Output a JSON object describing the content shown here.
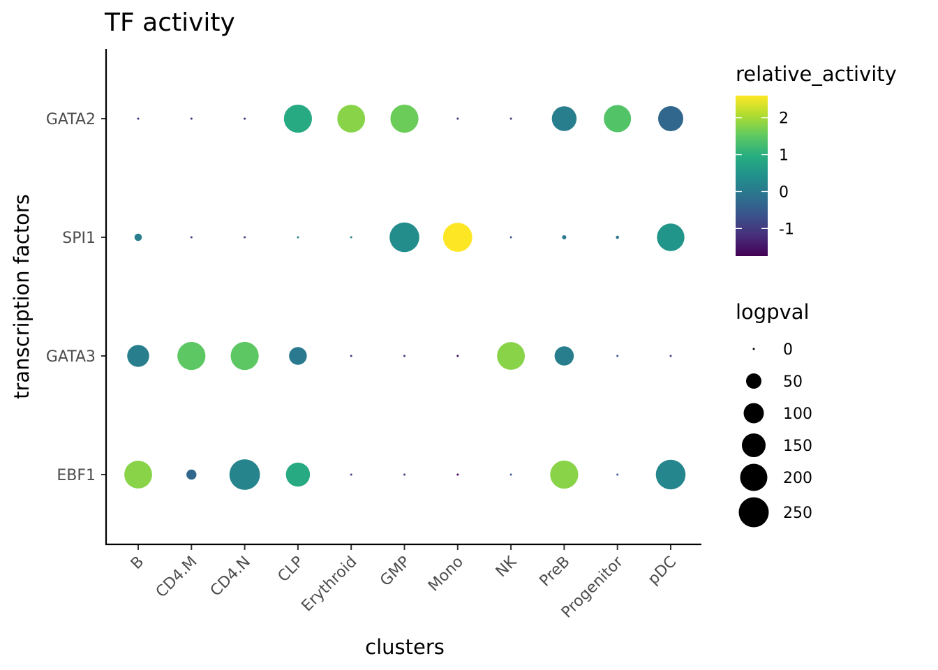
{
  "chart_data": {
    "type": "scatter",
    "title": "TF activity",
    "xlabel": "clusters",
    "ylabel": "transcription factors",
    "categories_x": [
      "B",
      "CD4.M",
      "CD4.N",
      "CLP",
      "Erythroid",
      "GMP",
      "Mono",
      "NK",
      "PreB",
      "Progenitor",
      "pDC"
    ],
    "categories_y": [
      "EBF1",
      "GATA3",
      "SPI1",
      "GATA2"
    ],
    "grid": false,
    "color_legend": {
      "title": "relative_activity",
      "min": -1.75,
      "max": 2.6,
      "ticks": [
        -1,
        0,
        1,
        2
      ],
      "tick_labels": [
        "-1",
        "0",
        "1",
        "2"
      ],
      "palette": "viridis"
    },
    "size_legend": {
      "title": "logpval",
      "breaks": [
        0,
        50,
        100,
        150,
        200,
        250
      ],
      "labels": [
        "0",
        "50",
        "100",
        "150",
        "200",
        "250"
      ]
    },
    "legend_position": "right",
    "points": [
      {
        "tf": "GATA2",
        "cluster": "B",
        "relative_activity": -1.2,
        "logpval": 0
      },
      {
        "tf": "GATA2",
        "cluster": "CD4.M",
        "relative_activity": -1.2,
        "logpval": 0
      },
      {
        "tf": "GATA2",
        "cluster": "CD4.N",
        "relative_activity": -1.2,
        "logpval": 0
      },
      {
        "tf": "GATA2",
        "cluster": "CLP",
        "relative_activity": 0.9,
        "logpval": 215
      },
      {
        "tf": "GATA2",
        "cluster": "Erythroid",
        "relative_activity": 1.8,
        "logpval": 210
      },
      {
        "tf": "GATA2",
        "cluster": "GMP",
        "relative_activity": 1.6,
        "logpval": 215
      },
      {
        "tf": "GATA2",
        "cluster": "Mono",
        "relative_activity": -1.2,
        "logpval": 0
      },
      {
        "tf": "GATA2",
        "cluster": "NK",
        "relative_activity": -1.2,
        "logpval": 0
      },
      {
        "tf": "GATA2",
        "cluster": "PreB",
        "relative_activity": 0.1,
        "logpval": 165
      },
      {
        "tf": "GATA2",
        "cluster": "Progenitor",
        "relative_activity": 1.4,
        "logpval": 200
      },
      {
        "tf": "GATA2",
        "cluster": "pDC",
        "relative_activity": -0.3,
        "logpval": 170
      },
      {
        "tf": "SPI1",
        "cluster": "B",
        "relative_activity": 0.1,
        "logpval": 20
      },
      {
        "tf": "SPI1",
        "cluster": "CD4.M",
        "relative_activity": -1.0,
        "logpval": 0
      },
      {
        "tf": "SPI1",
        "cluster": "CD4.N",
        "relative_activity": -1.0,
        "logpval": 0
      },
      {
        "tf": "SPI1",
        "cluster": "CLP",
        "relative_activity": 0.2,
        "logpval": 0
      },
      {
        "tf": "SPI1",
        "cluster": "Erythroid",
        "relative_activity": 0.2,
        "logpval": 0
      },
      {
        "tf": "SPI1",
        "cluster": "GMP",
        "relative_activity": 0.35,
        "logpval": 245
      },
      {
        "tf": "SPI1",
        "cluster": "Mono",
        "relative_activity": 2.6,
        "logpval": 235
      },
      {
        "tf": "SPI1",
        "cluster": "NK",
        "relative_activity": -0.6,
        "logpval": 0
      },
      {
        "tf": "SPI1",
        "cluster": "PreB",
        "relative_activity": 0.0,
        "logpval": 8
      },
      {
        "tf": "SPI1",
        "cluster": "Progenitor",
        "relative_activity": 0.0,
        "logpval": 4
      },
      {
        "tf": "SPI1",
        "cluster": "pDC",
        "relative_activity": 0.5,
        "logpval": 205
      },
      {
        "tf": "GATA3",
        "cluster": "B",
        "relative_activity": 0.1,
        "logpval": 125
      },
      {
        "tf": "GATA3",
        "cluster": "CD4.M",
        "relative_activity": 1.5,
        "logpval": 215
      },
      {
        "tf": "GATA3",
        "cluster": "CD4.N",
        "relative_activity": 1.5,
        "logpval": 215
      },
      {
        "tf": "GATA3",
        "cluster": "CLP",
        "relative_activity": 0.0,
        "logpval": 75
      },
      {
        "tf": "GATA3",
        "cluster": "Erythroid",
        "relative_activity": -1.0,
        "logpval": 0
      },
      {
        "tf": "GATA3",
        "cluster": "GMP",
        "relative_activity": -1.1,
        "logpval": 0
      },
      {
        "tf": "GATA3",
        "cluster": "Mono",
        "relative_activity": -1.6,
        "logpval": 0
      },
      {
        "tf": "GATA3",
        "cluster": "NK",
        "relative_activity": 1.8,
        "logpval": 210
      },
      {
        "tf": "GATA3",
        "cluster": "PreB",
        "relative_activity": 0.1,
        "logpval": 90
      },
      {
        "tf": "GATA3",
        "cluster": "Progenitor",
        "relative_activity": -0.6,
        "logpval": 0
      },
      {
        "tf": "GATA3",
        "cluster": "pDC",
        "relative_activity": -0.9,
        "logpval": 0
      },
      {
        "tf": "EBF1",
        "cluster": "B",
        "relative_activity": 1.8,
        "logpval": 210
      },
      {
        "tf": "EBF1",
        "cluster": "CD4.M",
        "relative_activity": -0.3,
        "logpval": 30
      },
      {
        "tf": "EBF1",
        "cluster": "CD4.N",
        "relative_activity": 0.2,
        "logpval": 260
      },
      {
        "tf": "EBF1",
        "cluster": "CLP",
        "relative_activity": 0.9,
        "logpval": 155
      },
      {
        "tf": "EBF1",
        "cluster": "Erythroid",
        "relative_activity": -0.9,
        "logpval": 0
      },
      {
        "tf": "EBF1",
        "cluster": "GMP",
        "relative_activity": -1.0,
        "logpval": 0
      },
      {
        "tf": "EBF1",
        "cluster": "Mono",
        "relative_activity": -1.7,
        "logpval": 0
      },
      {
        "tf": "EBF1",
        "cluster": "NK",
        "relative_activity": -0.5,
        "logpval": 0
      },
      {
        "tf": "EBF1",
        "cluster": "PreB",
        "relative_activity": 1.8,
        "logpval": 215
      },
      {
        "tf": "EBF1",
        "cluster": "Progenitor",
        "relative_activity": -0.5,
        "logpval": 0
      },
      {
        "tf": "EBF1",
        "cluster": "pDC",
        "relative_activity": 0.25,
        "logpval": 245
      }
    ]
  }
}
